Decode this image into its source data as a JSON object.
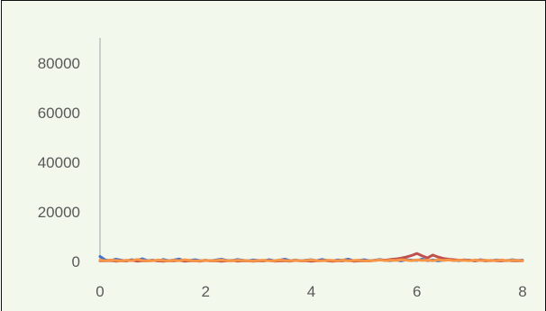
{
  "chart_data": {
    "type": "line",
    "title": "",
    "xlabel": "",
    "ylabel": "",
    "xlim": [
      0,
      8
    ],
    "ylim": [
      0,
      80000
    ],
    "x_ticks": [
      "0",
      "2",
      "4",
      "6",
      "8"
    ],
    "y_ticks": [
      "0",
      "20000",
      "40000",
      "60000",
      "80000"
    ],
    "grid": false,
    "legend": "none",
    "background_color": "#f3f8ed",
    "series": [
      {
        "color": "#4472c4",
        "x": [
          0,
          0.1,
          0.2,
          0.3,
          0.4,
          0.5,
          0.6,
          0.7,
          0.8,
          0.9,
          1.0,
          1.1,
          1.2,
          1.3,
          1.4,
          1.5,
          1.6,
          1.7,
          1.8,
          1.9,
          2.0,
          2.1,
          2.2,
          2.3,
          2.4,
          2.5,
          2.6,
          2.7,
          2.8,
          2.9,
          3.0,
          3.1,
          3.2,
          3.3,
          3.4,
          3.5,
          3.6,
          3.7,
          3.8,
          3.9,
          4.0,
          4.1,
          4.2,
          4.3,
          4.4,
          4.5,
          4.6,
          4.7,
          4.8,
          4.9,
          5.0,
          5.1,
          5.2,
          5.3,
          5.4,
          5.5,
          5.6,
          5.7,
          5.8,
          5.9,
          6.0,
          6.1,
          6.2,
          6.3,
          6.4,
          6.5,
          6.6,
          6.7,
          6.8,
          6.9,
          7.0,
          7.1,
          7.2,
          7.3,
          7.4,
          7.5,
          7.6,
          7.7,
          7.8,
          7.9,
          8.0
        ],
        "y": [
          2000,
          600,
          300,
          900,
          500,
          200,
          700,
          400,
          1100,
          300,
          500,
          200,
          800,
          300,
          600,
          1000,
          200,
          400,
          700,
          300,
          500,
          200,
          600,
          900,
          400,
          300,
          800,
          500,
          200,
          600,
          400,
          300,
          700,
          200,
          500,
          900,
          300,
          600,
          200,
          500,
          700,
          300,
          800,
          400,
          200,
          600,
          500,
          900,
          300,
          400,
          700,
          200,
          500,
          800,
          400,
          300,
          600,
          200,
          700,
          500,
          400,
          900,
          300,
          600,
          200,
          500,
          800,
          400,
          300,
          600,
          500,
          200,
          700,
          400,
          300,
          600,
          500,
          300,
          700,
          400,
          500
        ]
      },
      {
        "color": "#c0504d",
        "x": [
          0,
          0.1,
          0.2,
          0.3,
          0.4,
          0.5,
          0.6,
          0.7,
          0.8,
          0.9,
          1.0,
          1.1,
          1.2,
          1.3,
          1.4,
          1.5,
          1.6,
          1.7,
          1.8,
          1.9,
          2.0,
          2.1,
          2.2,
          2.3,
          2.4,
          2.5,
          2.6,
          2.7,
          2.8,
          2.9,
          3.0,
          3.1,
          3.2,
          3.3,
          3.4,
          3.5,
          3.6,
          3.7,
          3.8,
          3.9,
          4.0,
          4.1,
          4.2,
          4.3,
          4.4,
          4.5,
          4.6,
          4.7,
          4.8,
          4.9,
          5.0,
          5.1,
          5.2,
          5.3,
          5.4,
          5.5,
          5.6,
          5.7,
          5.8,
          5.9,
          6.0,
          6.1,
          6.2,
          6.3,
          6.4,
          6.5,
          6.6,
          6.7,
          6.8,
          6.9,
          7.0,
          7.1,
          7.2,
          7.3,
          7.4,
          7.5,
          7.6,
          7.7,
          7.8,
          7.9,
          8.0
        ],
        "y": [
          300,
          200,
          400,
          100,
          300,
          200,
          500,
          100,
          300,
          200,
          400,
          200,
          100,
          300,
          200,
          400,
          100,
          300,
          200,
          100,
          400,
          200,
          300,
          100,
          200,
          400,
          100,
          300,
          200,
          100,
          300,
          200,
          400,
          100,
          200,
          300,
          100,
          400,
          200,
          300,
          100,
          200,
          400,
          300,
          100,
          200,
          300,
          400,
          100,
          200,
          300,
          200,
          400,
          600,
          500,
          800,
          1000,
          1300,
          1800,
          2400,
          3200,
          2200,
          1400,
          2600,
          1800,
          1200,
          900,
          700,
          500,
          600,
          400,
          300,
          500,
          200,
          400,
          300,
          200,
          400,
          300,
          200,
          300
        ]
      },
      {
        "color": "#f79646",
        "x": [
          0,
          0.1,
          0.2,
          0.3,
          0.4,
          0.5,
          0.6,
          0.7,
          0.8,
          0.9,
          1.0,
          1.1,
          1.2,
          1.3,
          1.4,
          1.5,
          1.6,
          1.7,
          1.8,
          1.9,
          2.0,
          2.1,
          2.2,
          2.3,
          2.4,
          2.5,
          2.6,
          2.7,
          2.8,
          2.9,
          3.0,
          3.1,
          3.2,
          3.3,
          3.4,
          3.5,
          3.6,
          3.7,
          3.8,
          3.9,
          4.0,
          4.1,
          4.2,
          4.3,
          4.4,
          4.5,
          4.6,
          4.7,
          4.8,
          4.9,
          5.0,
          5.1,
          5.2,
          5.3,
          5.4,
          5.5,
          5.6,
          5.7,
          5.8,
          5.9,
          6.0,
          6.1,
          6.2,
          6.3,
          6.4,
          6.5,
          6.6,
          6.7,
          6.8,
          6.9,
          7.0,
          7.1,
          7.2,
          7.3,
          7.4,
          7.5,
          7.6,
          7.7,
          7.8,
          7.9,
          8.0
        ],
        "y": [
          500,
          300,
          600,
          400,
          200,
          500,
          300,
          800,
          400,
          200,
          300,
          600,
          400,
          200,
          500,
          300,
          700,
          400,
          200,
          300,
          500,
          200,
          400,
          600,
          300,
          200,
          500,
          400,
          300,
          200,
          400,
          500,
          300,
          200,
          600,
          400,
          300,
          500,
          200,
          400,
          600,
          300,
          200,
          500,
          400,
          300,
          600,
          200,
          400,
          500,
          300,
          200,
          400,
          600,
          300,
          500,
          400,
          700,
          500,
          300,
          600,
          400,
          500,
          300,
          700,
          400,
          600,
          300,
          500,
          400,
          300,
          600,
          400,
          500,
          300,
          400,
          600,
          300,
          500,
          400,
          300
        ]
      }
    ]
  }
}
